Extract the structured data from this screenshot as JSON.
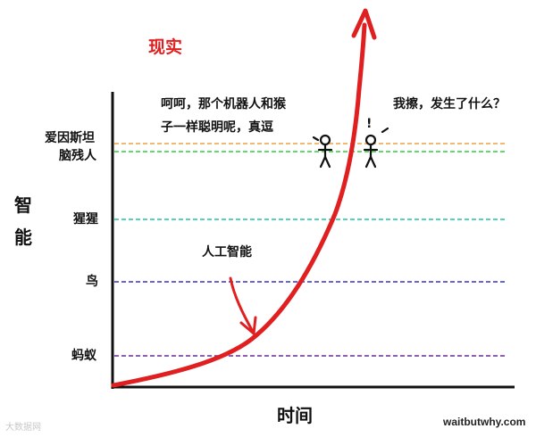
{
  "title": "现实",
  "y_axis_label": "智能",
  "x_axis_label": "时间",
  "credit": "waitbutwhy.com",
  "watermark": "大数据网",
  "curve_label": "人工智能",
  "speech_left_line1": "呵呵，那个机器人和猴",
  "speech_left_line2": "子一样聪明呢，真逗",
  "speech_right": "我擦，发生了什么？",
  "exclaim": "!",
  "levels": [
    {
      "label": "爱因斯坦",
      "color": "#f0a040"
    },
    {
      "label": "脑残人",
      "color": "#33cc44"
    },
    {
      "label": "猩猩",
      "color": "#22c0a0"
    },
    {
      "label": "鸟",
      "color": "#3333cc"
    },
    {
      "label": "蚂蚁",
      "color": "#6a2a9a"
    }
  ],
  "colors": {
    "curve": "#e02020",
    "axis": "#111111"
  }
}
